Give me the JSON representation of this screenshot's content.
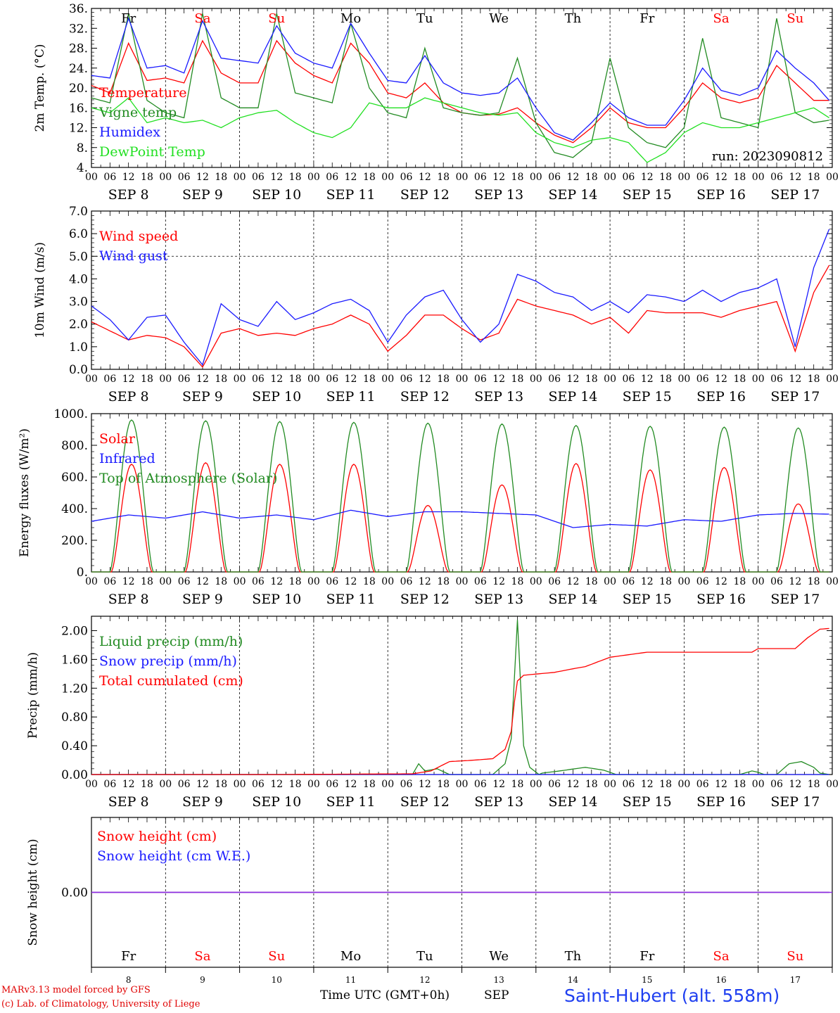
{
  "header": {
    "station": "Saint-Hubert (alt. 558m)",
    "credit_line1": "MARv3.13 model forced by GFS",
    "credit_line2": "(c) Lab. of Climatology, University of Liege",
    "x_axis_title": "Time UTC (GMT+0h)",
    "month_label": "SEP"
  },
  "days": [
    {
      "abbr": "Fr",
      "date": "SEP  8",
      "num": "8",
      "weekend": false
    },
    {
      "abbr": "Sa",
      "date": "SEP  9",
      "num": "9",
      "weekend": true
    },
    {
      "abbr": "Su",
      "date": "SEP 10",
      "num": "10",
      "weekend": true
    },
    {
      "abbr": "Mo",
      "date": "SEP 11",
      "num": "11",
      "weekend": false
    },
    {
      "abbr": "Tu",
      "date": "SEP 12",
      "num": "12",
      "weekend": false
    },
    {
      "abbr": "We",
      "date": "SEP 13",
      "num": "13",
      "weekend": false
    },
    {
      "abbr": "Th",
      "date": "SEP 14",
      "num": "14",
      "weekend": false
    },
    {
      "abbr": "Fr",
      "date": "SEP 15",
      "num": "15",
      "weekend": false
    },
    {
      "abbr": "Sa",
      "date": "SEP 16",
      "num": "16",
      "weekend": true
    },
    {
      "abbr": "Su",
      "date": "SEP 17",
      "num": "17",
      "weekend": true
    }
  ],
  "hour_ticks": [
    "00",
    "06",
    "12",
    "18"
  ],
  "colors": {
    "temperature": "#ff0000",
    "vigne": "#228b22",
    "humidex": "#1a1aff",
    "dewpoint": "#22e022",
    "weekend": "#ff0000"
  },
  "chart_data": [
    {
      "type": "line",
      "id": "temperature",
      "ylabel": "2m Temp. (°C)",
      "ylim": [
        4,
        36
      ],
      "yticks": [
        "4.",
        "8.",
        "12.",
        "16.",
        "20.",
        "24.",
        "28.",
        "32.",
        "36."
      ],
      "x_unit": "hours since SEP 8 00 UTC",
      "annotation": "run: 2023090812",
      "series": [
        {
          "name": "Temperature",
          "color": "#ff0000",
          "x": [
            0,
            6,
            12,
            18,
            24,
            30,
            36,
            42,
            48,
            54,
            60,
            66,
            72,
            78,
            84,
            90,
            96,
            102,
            108,
            114,
            120,
            126,
            132,
            138,
            144,
            150,
            156,
            162,
            168,
            174,
            180,
            186,
            192,
            198,
            204,
            210,
            216,
            222,
            228,
            234,
            239
          ],
          "y": [
            20.5,
            19,
            29,
            21.5,
            22,
            21,
            29.5,
            23,
            21,
            21,
            29.5,
            25,
            22.5,
            21,
            29,
            25,
            19,
            18,
            21,
            17,
            15,
            14.5,
            14.7,
            16,
            13,
            10.5,
            9,
            12,
            16,
            13,
            12,
            12,
            16,
            21,
            18,
            17,
            18,
            24.5,
            21,
            17.5,
            17.5
          ]
        },
        {
          "name": "Vigne temp",
          "color": "#228b22",
          "x": [
            0,
            6,
            12,
            18,
            24,
            30,
            36,
            42,
            48,
            54,
            60,
            66,
            72,
            78,
            84,
            90,
            96,
            102,
            108,
            114,
            120,
            126,
            132,
            138,
            144,
            150,
            156,
            162,
            168,
            174,
            180,
            186,
            192,
            198,
            204,
            210,
            216,
            222,
            228,
            234,
            239
          ],
          "y": [
            18,
            17,
            35,
            17.5,
            15,
            14,
            35,
            18,
            16,
            16,
            35,
            19,
            18,
            17,
            33,
            20,
            15,
            14,
            28,
            16,
            15,
            14.5,
            15,
            26,
            13,
            7,
            6,
            9,
            26,
            12,
            9,
            8,
            12,
            30,
            14,
            13,
            12,
            34,
            15,
            13,
            13.5
          ]
        },
        {
          "name": "Humidex",
          "color": "#1a1aff",
          "x": [
            0,
            6,
            12,
            18,
            24,
            30,
            36,
            42,
            48,
            54,
            60,
            66,
            72,
            78,
            84,
            90,
            96,
            102,
            108,
            114,
            120,
            126,
            132,
            138,
            144,
            150,
            156,
            162,
            168,
            174,
            180,
            186,
            192,
            198,
            204,
            210,
            216,
            222,
            228,
            234,
            239
          ],
          "y": [
            22.5,
            22,
            34,
            24,
            24.5,
            23,
            33.5,
            26,
            25.5,
            25,
            32.5,
            27,
            25,
            24,
            33,
            27,
            21.5,
            21,
            26.5,
            21,
            19,
            18.5,
            19,
            22,
            16,
            11,
            9.5,
            13,
            17,
            14,
            12.5,
            12.5,
            17.5,
            24,
            19.5,
            18.5,
            20,
            27.5,
            24,
            21,
            17.5
          ]
        },
        {
          "name": "DewPoint Temp",
          "color": "#22e022",
          "x": [
            0,
            6,
            12,
            18,
            24,
            30,
            36,
            42,
            48,
            54,
            60,
            66,
            72,
            78,
            84,
            90,
            96,
            102,
            108,
            114,
            120,
            126,
            132,
            138,
            144,
            150,
            156,
            162,
            168,
            174,
            180,
            186,
            192,
            198,
            204,
            210,
            216,
            222,
            228,
            234,
            239
          ],
          "y": [
            16,
            15,
            18,
            13,
            14,
            13,
            13.5,
            12,
            14,
            15,
            15.5,
            13,
            11,
            10,
            12,
            17,
            16,
            16,
            18,
            17,
            16,
            15,
            14.5,
            15,
            11,
            9,
            8,
            9.5,
            10,
            9,
            5,
            7,
            11,
            13,
            12,
            12,
            13,
            14,
            15,
            16,
            14
          ]
        }
      ]
    },
    {
      "type": "line",
      "id": "wind",
      "ylabel": "10m Wind (m/s)",
      "ylim": [
        0,
        7
      ],
      "yticks": [
        "0.0",
        "1.0",
        "2.0",
        "3.0",
        "4.0",
        "5.0",
        "6.0",
        "7.0"
      ],
      "reference_line": 5,
      "series": [
        {
          "name": "Wind speed",
          "color": "#ff0000",
          "x": [
            0,
            6,
            12,
            18,
            24,
            30,
            36,
            42,
            48,
            54,
            60,
            66,
            72,
            78,
            84,
            90,
            96,
            102,
            108,
            114,
            120,
            126,
            132,
            138,
            144,
            150,
            156,
            162,
            168,
            174,
            180,
            186,
            192,
            198,
            204,
            210,
            216,
            222,
            228,
            234,
            239
          ],
          "y": [
            2.1,
            1.7,
            1.3,
            1.5,
            1.4,
            1.0,
            0.1,
            1.6,
            1.8,
            1.5,
            1.6,
            1.5,
            1.8,
            2.0,
            2.4,
            2.0,
            0.8,
            1.5,
            2.4,
            2.4,
            1.8,
            1.3,
            1.6,
            3.1,
            2.8,
            2.6,
            2.4,
            2.0,
            2.3,
            1.6,
            2.6,
            2.5,
            2.5,
            2.5,
            2.3,
            2.6,
            2.8,
            3.0,
            0.8,
            3.4,
            4.6
          ]
        },
        {
          "name": "Wind gust",
          "color": "#1a1aff",
          "x": [
            0,
            6,
            12,
            18,
            24,
            30,
            36,
            42,
            48,
            54,
            60,
            66,
            72,
            78,
            84,
            90,
            96,
            102,
            108,
            114,
            120,
            126,
            132,
            138,
            144,
            150,
            156,
            162,
            168,
            174,
            180,
            186,
            192,
            198,
            204,
            210,
            216,
            222,
            228,
            234,
            239
          ],
          "y": [
            2.8,
            2.2,
            1.3,
            2.3,
            2.4,
            1.2,
            0.2,
            2.9,
            2.2,
            1.9,
            3.0,
            2.2,
            2.5,
            2.9,
            3.1,
            2.6,
            1.2,
            2.4,
            3.2,
            3.5,
            2.2,
            1.2,
            2.0,
            4.2,
            3.9,
            3.4,
            3.2,
            2.6,
            3.0,
            2.5,
            3.3,
            3.2,
            3.0,
            3.5,
            3.0,
            3.4,
            3.6,
            4.0,
            1.0,
            4.5,
            6.2
          ]
        }
      ]
    },
    {
      "type": "line",
      "id": "energy",
      "ylabel": "Energy fluxes (W/m²)",
      "ylim": [
        0,
        1000
      ],
      "yticks": [
        "0.",
        "200.",
        "400.",
        "600.",
        "800.",
        "1000."
      ],
      "series": [
        {
          "name": "Solar",
          "color": "#ff0000",
          "peak_hour": 13,
          "halfwidth_hours": 6.5,
          "daily_peaks": [
            680,
            690,
            680,
            680,
            420,
            550,
            685,
            645,
            660,
            430
          ]
        },
        {
          "name": "Infrared",
          "color": "#1a1aff",
          "x": [
            0,
            12,
            24,
            36,
            48,
            60,
            72,
            84,
            96,
            108,
            120,
            132,
            144,
            156,
            168,
            180,
            192,
            204,
            216,
            228,
            239
          ],
          "y": [
            320,
            360,
            340,
            380,
            340,
            360,
            330,
            390,
            350,
            380,
            380,
            370,
            360,
            280,
            300,
            290,
            330,
            320,
            360,
            370,
            365
          ]
        },
        {
          "name": "Top of Atmosphere (Solar)",
          "color": "#228b22",
          "peak_hour": 13,
          "halfwidth_hours": 7,
          "daily_peaks": [
            960,
            955,
            950,
            945,
            940,
            935,
            925,
            920,
            915,
            910
          ]
        }
      ]
    },
    {
      "type": "line",
      "id": "precip",
      "ylabel": "Precip (mm/h)",
      "ylim": [
        0,
        2.2
      ],
      "yticks": [
        "0.00",
        "0.40",
        "0.80",
        "1.20",
        "1.60",
        "2.00"
      ],
      "series": [
        {
          "name": "Liquid precip (mm/h)",
          "color": "#228b22",
          "x": [
            0,
            100,
            104,
            106,
            108,
            112,
            116,
            130,
            134,
            136,
            138,
            140,
            142,
            145,
            146,
            150,
            160,
            166,
            170,
            180,
            210,
            214,
            216,
            218,
            222,
            226,
            230,
            234,
            236,
            239
          ],
          "y": [
            0,
            0,
            0,
            0.15,
            0.05,
            0.08,
            0,
            0,
            0.15,
            0.5,
            2.15,
            0.4,
            0.1,
            0,
            0.02,
            0.04,
            0.1,
            0.06,
            0,
            0,
            0,
            0.05,
            0.03,
            0,
            0,
            0.15,
            0.18,
            0.1,
            0.02,
            0
          ]
        },
        {
          "name": "Snow precip (mm/h)",
          "color": "#1a1aff",
          "x": [
            0,
            239
          ],
          "y": [
            0,
            0
          ]
        },
        {
          "name": "Total cumulated (cm)",
          "color": "#ff0000",
          "x": [
            0,
            60,
            104,
            110,
            116,
            124,
            130,
            134,
            136,
            137,
            138,
            140,
            150,
            156,
            160,
            168,
            180,
            192,
            200,
            210,
            214,
            216,
            224,
            228,
            232,
            236,
            239
          ],
          "y": [
            0,
            0,
            0.01,
            0.05,
            0.18,
            0.2,
            0.22,
            0.35,
            0.6,
            1.0,
            1.3,
            1.38,
            1.42,
            1.47,
            1.5,
            1.63,
            1.7,
            1.7,
            1.7,
            1.7,
            1.7,
            1.75,
            1.75,
            1.75,
            1.9,
            2.02,
            2.03
          ]
        }
      ]
    },
    {
      "type": "line",
      "id": "snow",
      "ylabel": "Snow height (cm)",
      "ylim": [
        -1,
        1
      ],
      "yticks": [
        "0.00"
      ],
      "series": [
        {
          "name": "Snow height (cm)",
          "color": "#ff0000",
          "x": [
            0,
            239
          ],
          "y": [
            0,
            0
          ]
        },
        {
          "name": "Snow height (cm W.E.)",
          "color": "#1a1aff",
          "x": [
            0,
            239
          ],
          "y": [
            0,
            0
          ]
        }
      ]
    }
  ]
}
